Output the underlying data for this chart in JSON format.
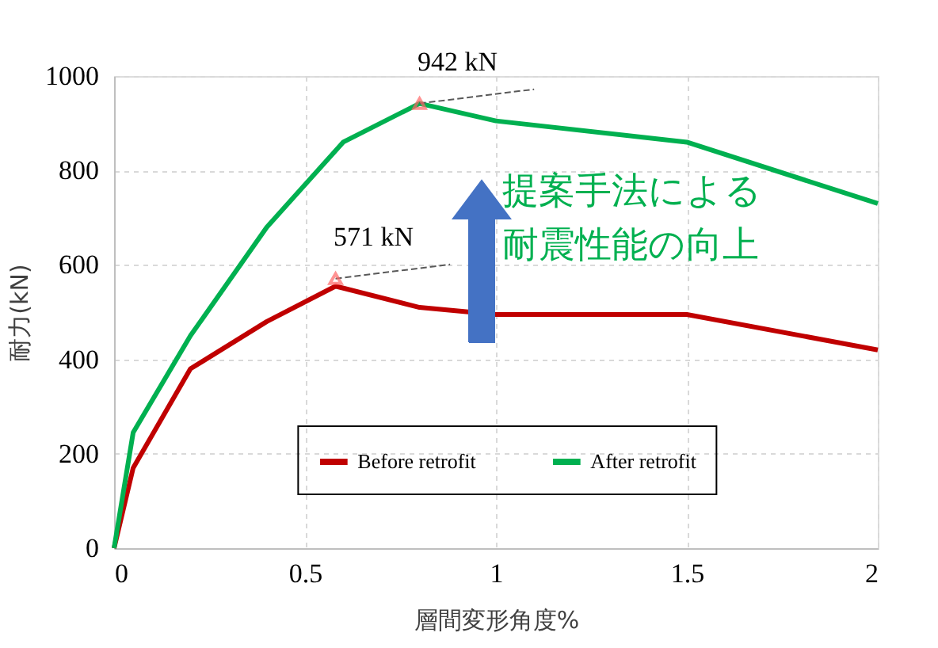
{
  "chart_data": {
    "type": "line",
    "xlabel": "層間変形角度%",
    "ylabel": "耐力(kN)",
    "xlim": [
      0,
      2
    ],
    "xticks": [
      0,
      0.5,
      1,
      1.5,
      2
    ],
    "ylim": [
      0,
      1000
    ],
    "yticks": [
      0,
      200,
      400,
      600,
      800,
      1000
    ],
    "grid": true,
    "legend": "bottom",
    "marker": "none",
    "line_style": "solid",
    "series": [
      {
        "name": "Before retrofit",
        "color": "#c00000",
        "x": [
          0,
          0.05,
          0.2,
          0.4,
          0.58,
          0.8,
          1.0,
          1.5,
          2.0
        ],
        "values": [
          0,
          170,
          380,
          480,
          555,
          510,
          495,
          495,
          420
        ]
      },
      {
        "name": "After retrofit",
        "color": "#00b050",
        "x": [
          0,
          0.05,
          0.2,
          0.4,
          0.6,
          0.8,
          1.0,
          1.5,
          2.0
        ],
        "values": [
          0,
          245,
          450,
          680,
          860,
          942,
          905,
          860,
          730
        ]
      }
    ],
    "annotations": [
      {
        "text": "942 kN",
        "x": 0.8,
        "y": 942
      },
      {
        "text": "571 kN",
        "x": 0.58,
        "y": 571
      },
      "提案手法による耐震性能の向上"
    ]
  }
}
